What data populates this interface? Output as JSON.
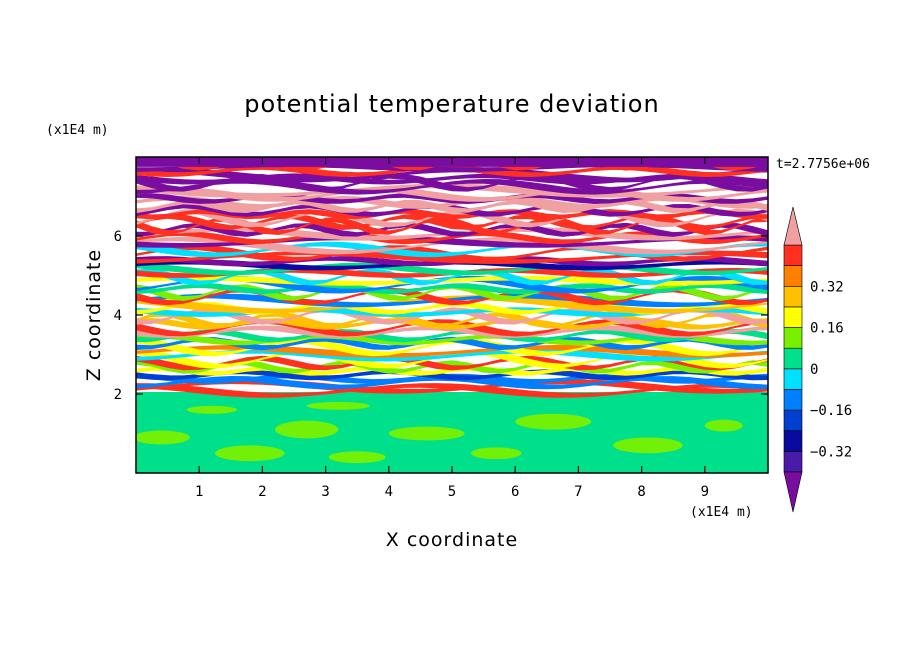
{
  "chart_data": {
    "type": "heatmap",
    "title": "potential temperature deviation",
    "xlabel": "X coordinate",
    "ylabel": "Z coordinate",
    "x_unit": "(x1E4 m)",
    "y_unit": "(x1E4 m)",
    "time_label": "t=2.7756e+06",
    "xlim": [
      0,
      10
    ],
    "ylim": [
      0,
      8
    ],
    "x_ticks": [
      "1",
      "2",
      "3",
      "4",
      "5",
      "6",
      "7",
      "8",
      "9"
    ],
    "y_ticks": [
      "2",
      "4",
      "6"
    ],
    "colorbar": {
      "levels": [
        -0.48,
        -0.4,
        -0.32,
        -0.24,
        -0.16,
        -0.08,
        0,
        0.08,
        0.16,
        0.24,
        0.32,
        0.4,
        0.48
      ],
      "labels": [
        "0.32",
        "0.16",
        "0",
        "−0.16",
        "−0.32"
      ],
      "colors": [
        "#7a0da0",
        "#4a1aa8",
        "#0a0aa0",
        "#0040d0",
        "#0080ff",
        "#00e0ff",
        "#00e08a",
        "#78f000",
        "#ffff00",
        "#ffc000",
        "#ff8000",
        "#ff3020",
        "#f0a0a0"
      ],
      "extend": "both"
    },
    "band_colors": {
      "top": "#f0a0a0",
      "purple": "#7a0da0",
      "bottom_fill": "#00e08a",
      "bottom_patch": "#78f000"
    }
  }
}
